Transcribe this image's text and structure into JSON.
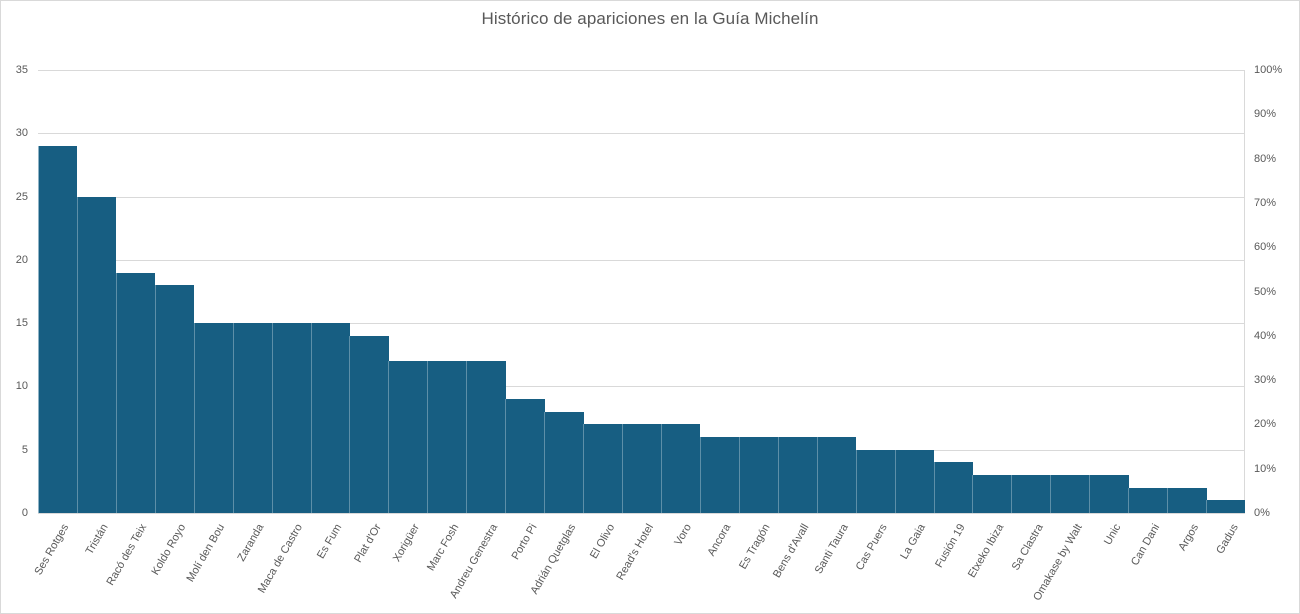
{
  "chart_data": {
    "type": "bar",
    "title": "Histórico de apariciones en la Guía Michelín",
    "xlabel": "",
    "ylabel": "",
    "ylim": [
      0,
      35
    ],
    "yticks": [
      0,
      5,
      10,
      15,
      20,
      25,
      30,
      35
    ],
    "y2lim": [
      0,
      1
    ],
    "y2ticks": [
      "0%",
      "10%",
      "20%",
      "30%",
      "40%",
      "50%",
      "60%",
      "70%",
      "80%",
      "90%",
      "100%"
    ],
    "grid": true,
    "legend": null,
    "bar_color": "#175e82",
    "categories": [
      "Ses Rotges",
      "Tristán",
      "Racó des Teix",
      "Koldo Royo",
      "Molí den Bou",
      "Zaranda",
      "Maca de Castro",
      "Es Fum",
      "Plat d'Or",
      "Xorigüer",
      "Marc Fosh",
      "Andreu Genestra",
      "Porto Pi",
      "Adrián Quetglas",
      "El Olivo",
      "Read's Hotel",
      "Voro",
      "Ancora",
      "Es Tragón",
      "Bens d'Avall",
      "Santi Taura",
      "Cas Puers",
      "La Gaia",
      "Fusión 19",
      "Etxeko Ibiza",
      "Sa Clastra",
      "Omakase by Walt",
      "Unic",
      "Can Dani",
      "Argos",
      "Gadus"
    ],
    "values": [
      29,
      25,
      19,
      18,
      15,
      15,
      15,
      15,
      14,
      12,
      12,
      12,
      9,
      8,
      7,
      7,
      7,
      6,
      6,
      6,
      6,
      5,
      5,
      4,
      3,
      3,
      3,
      3,
      2,
      2,
      1
    ]
  }
}
